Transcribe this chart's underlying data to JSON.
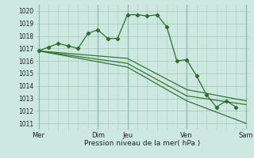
{
  "background_color": "#cce8e0",
  "grid_color": "#aaccbb",
  "line_color": "#2d6e2d",
  "marker_color": "#2d6e2d",
  "ylim": [
    1010.5,
    1020.5
  ],
  "yticks": [
    1011,
    1012,
    1013,
    1014,
    1015,
    1016,
    1017,
    1018,
    1019,
    1020
  ],
  "xlabel": "Pression niveau de la mer( hPa )",
  "xtick_labels": [
    "Mer",
    "Dim",
    "Jeu",
    "Ven",
    "Sam"
  ],
  "xtick_positions": [
    0,
    6,
    9,
    15,
    21
  ],
  "vlines": [
    0,
    6,
    9,
    15,
    21
  ],
  "series1_x": [
    0,
    1,
    2,
    3,
    4,
    5,
    6,
    7,
    8,
    9,
    10,
    11,
    12,
    13,
    14,
    15,
    16,
    17,
    18,
    19,
    20
  ],
  "series1_y": [
    1016.8,
    1017.1,
    1017.4,
    1017.2,
    1017.0,
    1018.2,
    1018.5,
    1017.8,
    1017.8,
    1019.7,
    1019.7,
    1019.6,
    1019.7,
    1018.7,
    1016.0,
    1016.1,
    1014.8,
    1013.3,
    1012.3,
    1012.8,
    1012.3
  ],
  "series2_x": [
    0,
    9,
    15,
    21
  ],
  "series2_y": [
    1016.8,
    1016.2,
    1013.7,
    1012.8
  ],
  "series3_x": [
    0,
    9,
    15,
    21
  ],
  "series3_y": [
    1016.8,
    1015.8,
    1013.2,
    1012.5
  ],
  "series4_x": [
    0,
    9,
    15,
    21
  ],
  "series4_y": [
    1016.8,
    1015.5,
    1012.8,
    1011.0
  ]
}
